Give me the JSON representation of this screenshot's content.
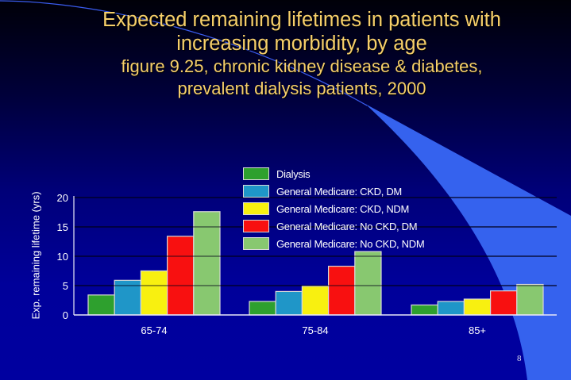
{
  "slide": {
    "title_line1": "Expected remaining lifetimes in patients with",
    "title_line2": "increasing morbidity, by age",
    "subtitle_line1": "figure 9.25, chronic kidney disease & diabetes,",
    "subtitle_line2": "prevalent dialysis patients, 2000",
    "page_number": "8",
    "colors": {
      "title": "#f6cf6a",
      "background_top": "#000008",
      "background_bottom": "#0000a0",
      "swoosh": "#3060f0"
    }
  },
  "chart_data": {
    "type": "bar",
    "title": "Expected remaining lifetimes in patients with increasing morbidity, by age",
    "subtitle": "figure 9.25, chronic kidney disease & diabetes, prevalent dialysis patients, 2000",
    "xlabel": "",
    "ylabel": "Exp. remaining lifetime (yrs)",
    "ylim": [
      0,
      20
    ],
    "yticks": [
      0,
      5,
      10,
      15,
      20
    ],
    "grid": true,
    "legend_position": "upper right (inside plot)",
    "categories": [
      "65-74",
      "75-84",
      "85+"
    ],
    "series": [
      {
        "name": "Dialysis",
        "color": "#2ea02e",
        "values": [
          3.4,
          2.3,
          1.7
        ]
      },
      {
        "name": "General Medicare: CKD, DM",
        "color": "#1f96c8",
        "values": [
          5.9,
          4.0,
          2.3
        ]
      },
      {
        "name": "General Medicare: CKD, NDM",
        "color": "#f8f010",
        "values": [
          7.5,
          4.9,
          2.7
        ]
      },
      {
        "name": "General Medicare: No CKD, DM",
        "color": "#f81010",
        "values": [
          13.4,
          8.3,
          4.1
        ]
      },
      {
        "name": "General Medicare: No CKD, NDM",
        "color": "#88c870",
        "values": [
          17.6,
          10.8,
          5.2
        ]
      }
    ]
  }
}
